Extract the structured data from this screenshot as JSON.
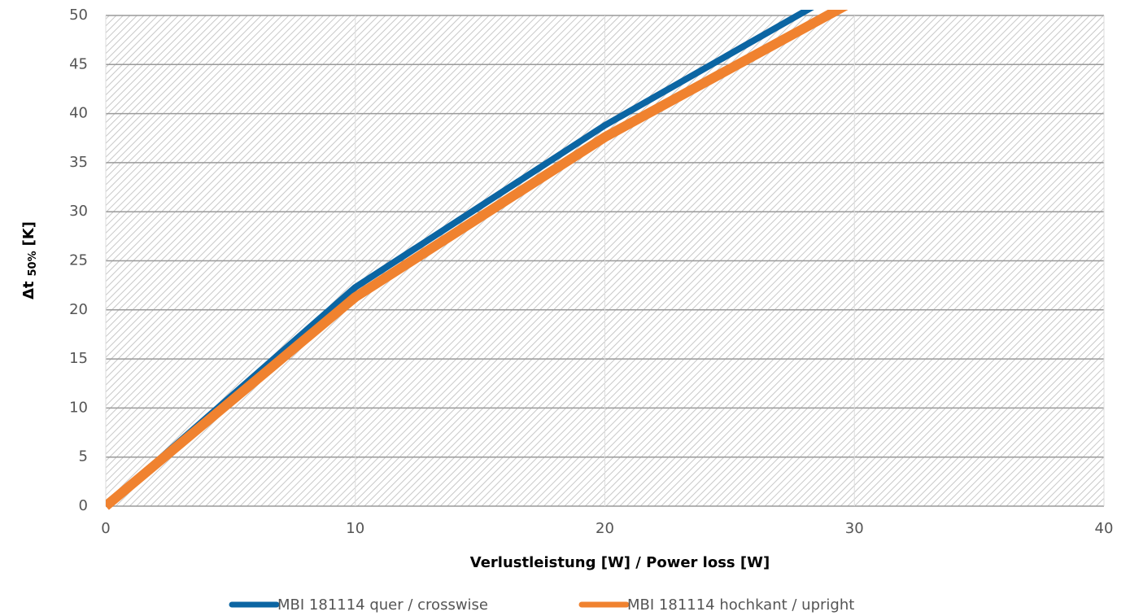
{
  "chart_data": {
    "type": "line",
    "xlabel": "Verlustleistung [W] / Power loss [W]",
    "ylabel": {
      "main": "Δt",
      "sub": "50%",
      "unit": "[K]"
    },
    "x": [
      0,
      10,
      20,
      30
    ],
    "series": [
      {
        "name": "MBI 181114 quer / crosswise",
        "color": "#0b65a3",
        "values": [
          0,
          22.3,
          38.8,
          53.3
        ]
      },
      {
        "name": "MBI 181114 hochkant / upright",
        "color": "#f0822f",
        "values": [
          0,
          21.3,
          37.6,
          51.5
        ]
      }
    ],
    "xlim": [
      0,
      40
    ],
    "xticks": [
      0,
      10,
      20,
      30,
      40
    ],
    "ylim": [
      0,
      50
    ],
    "yticks": [
      0,
      5,
      10,
      15,
      20,
      25,
      30,
      35,
      40,
      45,
      50
    ],
    "grid": true,
    "legend": "bottom"
  }
}
